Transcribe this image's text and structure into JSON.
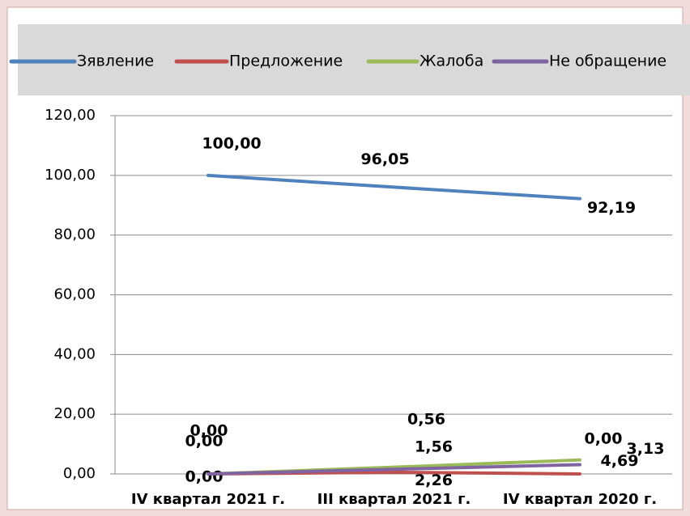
{
  "chart_data": {
    "type": "line",
    "categories": [
      "IV квартал 2021 г.",
      "III квартал 2021 г.",
      "IV квартал 2020 г."
    ],
    "series": [
      {
        "name": "Зявление",
        "color": "#4f81bd",
        "values": [
          100,
          96.05,
          92.19
        ],
        "value_labels": [
          "100,00",
          "96,05",
          "92,19"
        ]
      },
      {
        "name": "Предложение",
        "color": "#c0504d",
        "values": [
          0,
          0.56,
          0
        ],
        "value_labels": [
          "0,00",
          "0,56",
          "0,00"
        ]
      },
      {
        "name": "Жалоба",
        "color": "#9bbb59",
        "values": [
          0,
          2.26,
          4.69
        ],
        "value_labels": [
          "0,00",
          "2,26",
          "4,69"
        ]
      },
      {
        "name": "Не обращение",
        "color": "#8064a2",
        "values": [
          0,
          1.56,
          3.13
        ],
        "value_labels": [
          "0,00",
          "1,56",
          "3,13"
        ]
      }
    ],
    "ylim": [
      0,
      120
    ],
    "yticks": [
      {
        "value": 0,
        "label": "0,00"
      },
      {
        "value": 20,
        "label": "20,00"
      },
      {
        "value": 40,
        "label": "40,00"
      },
      {
        "value": 60,
        "label": "60,00"
      },
      {
        "value": 80,
        "label": "80,00"
      },
      {
        "value": 100,
        "label": "100,00"
      },
      {
        "value": 120,
        "label": "120,00"
      }
    ],
    "grid": true,
    "legend": "top"
  }
}
